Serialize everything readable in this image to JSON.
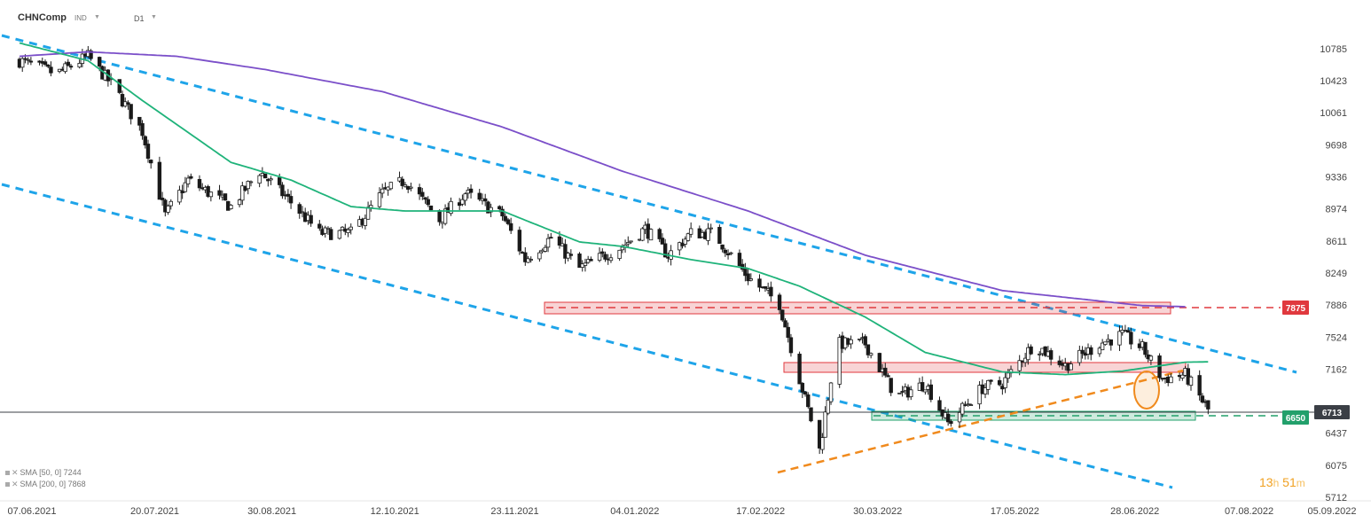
{
  "header": {
    "symbol": "CHNComp",
    "category": "IND",
    "timeframe": "D1"
  },
  "legend": [
    {
      "name": "SMA",
      "params": "[50, 0]",
      "value": "7244"
    },
    {
      "name": "SMA",
      "params": "[200, 0]",
      "value": "7868"
    }
  ],
  "countdown": {
    "hours": "13",
    "hours_unit": "h",
    "minutes": "51",
    "minutes_unit": "m"
  },
  "colors": {
    "bull": "#ffffff",
    "bear": "#1a1a1a",
    "sma50": "#1fb37a",
    "sma200": "#7b4fc9",
    "channel": "#1ea4e9",
    "trend": "#f08a1d",
    "resistance": "#e0393e",
    "support": "#22a06b",
    "price_tag": "#3b3f46"
  },
  "chart_data": {
    "type": "candlestick",
    "y_ticks": [
      "10785",
      "10423",
      "10061",
      "9698",
      "9336",
      "8974",
      "8611",
      "8249",
      "7886",
      "7524",
      "7162",
      "6437",
      "6075",
      "5712"
    ],
    "x_ticks": [
      "07.06.2021",
      "20.07.2021",
      "30.08.2021",
      "12.10.2021",
      "23.11.2021",
      "04.01.2022",
      "17.02.2022",
      "30.03.2022",
      "17.05.2022",
      "28.06.2022",
      "07.08.2022",
      "05.09.2022"
    ],
    "x_range": [
      "2021-06-07",
      "2022-09-05"
    ],
    "y_range": [
      5712,
      10785
    ],
    "current_price": {
      "value": 6713,
      "label": "6713"
    },
    "levels": [
      {
        "label": "7875",
        "value": 7875,
        "kind": "resistance"
      },
      {
        "label": "6650",
        "value": 6650,
        "kind": "support"
      }
    ],
    "sma50_last": 7244,
    "sma200_last": 7868,
    "price_anchors": [
      [
        "2021-06-07",
        10650
      ],
      [
        "2021-06-20",
        10500
      ],
      [
        "2021-07-01",
        10700
      ],
      [
        "2021-07-10",
        10350
      ],
      [
        "2021-07-20",
        9850
      ],
      [
        "2021-07-28",
        8900
      ],
      [
        "2021-08-05",
        9300
      ],
      [
        "2021-08-15",
        9100
      ],
      [
        "2021-08-20",
        9000
      ],
      [
        "2021-08-30",
        9400
      ],
      [
        "2021-09-10",
        9050
      ],
      [
        "2021-09-20",
        8700
      ],
      [
        "2021-10-01",
        8700
      ],
      [
        "2021-10-12",
        9150
      ],
      [
        "2021-10-20",
        9300
      ],
      [
        "2021-11-01",
        8850
      ],
      [
        "2021-11-10",
        9150
      ],
      [
        "2021-11-23",
        8900
      ],
      [
        "2021-12-01",
        8400
      ],
      [
        "2021-12-10",
        8650
      ],
      [
        "2021-12-20",
        8300
      ],
      [
        "2022-01-04",
        8550
      ],
      [
        "2022-01-12",
        8750
      ],
      [
        "2022-01-20",
        8450
      ],
      [
        "2022-01-28",
        8700
      ],
      [
        "2022-02-05",
        8700
      ],
      [
        "2022-02-17",
        8200
      ],
      [
        "2022-02-28",
        7900
      ],
      [
        "2022-03-07",
        7050
      ],
      [
        "2022-03-14",
        6250
      ],
      [
        "2022-03-20",
        7450
      ],
      [
        "2022-03-30",
        7450
      ],
      [
        "2022-04-10",
        6850
      ],
      [
        "2022-04-20",
        7000
      ],
      [
        "2022-04-28",
        6550
      ],
      [
        "2022-05-10",
        6950
      ],
      [
        "2022-05-17",
        7000
      ],
      [
        "2022-05-28",
        7450
      ],
      [
        "2022-06-08",
        7200
      ],
      [
        "2022-06-20",
        7450
      ],
      [
        "2022-06-28",
        7550
      ],
      [
        "2022-07-05",
        7400
      ],
      [
        "2022-07-12",
        7050
      ],
      [
        "2022-07-20",
        7100
      ],
      [
        "2022-07-28",
        6700
      ]
    ],
    "sma50_anchors": [
      [
        "2021-06-07",
        10850
      ],
      [
        "2021-07-01",
        10650
      ],
      [
        "2021-07-20",
        10200
      ],
      [
        "2021-08-20",
        9500
      ],
      [
        "2021-09-10",
        9300
      ],
      [
        "2021-10-01",
        9000
      ],
      [
        "2021-10-20",
        8950
      ],
      [
        "2021-11-23",
        8950
      ],
      [
        "2021-12-20",
        8600
      ],
      [
        "2022-01-04",
        8550
      ],
      [
        "2022-01-28",
        8400
      ],
      [
        "2022-02-17",
        8300
      ],
      [
        "2022-03-07",
        8100
      ],
      [
        "2022-03-30",
        7750
      ],
      [
        "2022-04-20",
        7350
      ],
      [
        "2022-05-17",
        7130
      ],
      [
        "2022-06-08",
        7100
      ],
      [
        "2022-06-28",
        7140
      ],
      [
        "2022-07-20",
        7240
      ],
      [
        "2022-07-28",
        7244
      ]
    ],
    "sma200_anchors": [
      [
        "2021-06-07",
        10700
      ],
      [
        "2021-07-01",
        10750
      ],
      [
        "2021-08-01",
        10700
      ],
      [
        "2021-09-01",
        10550
      ],
      [
        "2021-10-12",
        10300
      ],
      [
        "2021-11-23",
        9900
      ],
      [
        "2022-01-04",
        9400
      ],
      [
        "2022-02-17",
        8950
      ],
      [
        "2022-03-30",
        8450
      ],
      [
        "2022-05-17",
        8050
      ],
      [
        "2022-07-05",
        7880
      ],
      [
        "2022-07-20",
        7868
      ]
    ]
  }
}
